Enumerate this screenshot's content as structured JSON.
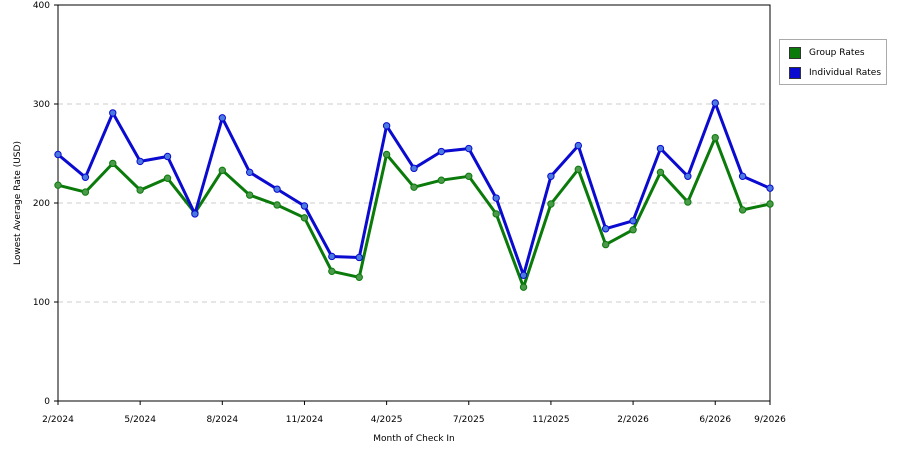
{
  "chart_data": {
    "type": "line",
    "xlabel": "Month of Check In",
    "ylabel": "Lowest Average Rate (USD)",
    "ylim": [
      0,
      400
    ],
    "yticks": [
      0,
      100,
      200,
      300,
      400
    ],
    "grid": "horizontal-dashed",
    "legend_position": "right",
    "x": [
      "2/2024",
      "3/2024",
      "4/2024",
      "5/2024",
      "6/2024",
      "7/2024",
      "8/2024",
      "9/2024",
      "10/2024",
      "11/2024",
      "12/2024",
      "1/2025",
      "4/2025",
      "5/2025",
      "6/2025",
      "7/2025",
      "8/2025",
      "9/2025",
      "11/2025",
      "12/2025",
      "1/2026",
      "2/2026",
      "3/2026",
      "4/2026",
      "6/2026",
      "7/2026",
      "9/2026"
    ],
    "xticks": [
      "2/2024",
      "5/2024",
      "8/2024",
      "11/2024",
      "4/2025",
      "7/2025",
      "11/2025",
      "2/2026",
      "6/2026",
      "9/2026"
    ],
    "series": [
      {
        "name": "Group Rates",
        "color": "#0a7a0a",
        "marker_color": "#4a9a4a",
        "values": [
          218,
          211,
          240,
          213,
          225,
          190,
          233,
          208,
          198,
          185,
          131,
          125,
          249,
          216,
          223,
          227,
          189,
          115,
          199,
          234,
          158,
          173,
          231,
          201,
          266,
          193,
          199
        ]
      },
      {
        "name": "Individual Rates",
        "color": "#0a0ad0",
        "marker_color": "#4a7ae0",
        "values": [
          249,
          226,
          291,
          242,
          247,
          189,
          286,
          231,
          214,
          197,
          146,
          145,
          278,
          235,
          252,
          255,
          205,
          127,
          227,
          258,
          174,
          182,
          255,
          227,
          301,
          227,
          215
        ]
      }
    ]
  }
}
